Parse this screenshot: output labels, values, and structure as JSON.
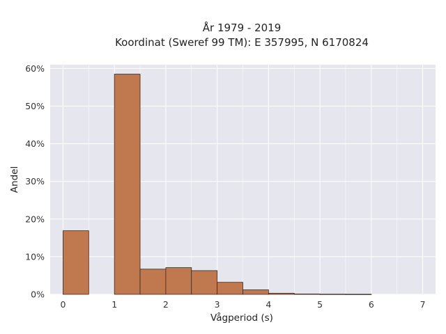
{
  "chart_data": {
    "type": "bar",
    "title_line1": "År 1979 - 2019",
    "title_line2": "Koordinat (Sweref 99 TM): E 357995, N 6170824",
    "xlabel": "Vågperiod (s)",
    "ylabel": "Andel",
    "xlim": [
      -0.25,
      7.25
    ],
    "ylim": [
      0,
      0.61
    ],
    "x_ticks": [
      0,
      1,
      2,
      3,
      4,
      5,
      6,
      7
    ],
    "y_ticks": [
      0,
      0.1,
      0.2,
      0.3,
      0.4,
      0.5,
      0.6
    ],
    "y_tick_labels": [
      "0%",
      "10%",
      "20%",
      "30%",
      "40%",
      "50%",
      "60%"
    ],
    "bin_width": 0.5,
    "bins": [
      {
        "x": 0.0,
        "value": 0.169
      },
      {
        "x": 0.5,
        "value": 0.0
      },
      {
        "x": 1.0,
        "value": 0.585
      },
      {
        "x": 1.5,
        "value": 0.067
      },
      {
        "x": 2.0,
        "value": 0.071
      },
      {
        "x": 2.5,
        "value": 0.063
      },
      {
        "x": 3.0,
        "value": 0.032
      },
      {
        "x": 3.5,
        "value": 0.012
      },
      {
        "x": 4.0,
        "value": 0.003
      },
      {
        "x": 4.5,
        "value": 0.001
      },
      {
        "x": 5.0,
        "value": 0.0005
      },
      {
        "x": 5.5,
        "value": 0.0003
      }
    ],
    "grid": true,
    "colors": {
      "bar_fill": "#c0784f",
      "bar_edge": "#3a2a20",
      "plot_bg": "#e6e6ef",
      "grid": "#ffffff"
    }
  }
}
